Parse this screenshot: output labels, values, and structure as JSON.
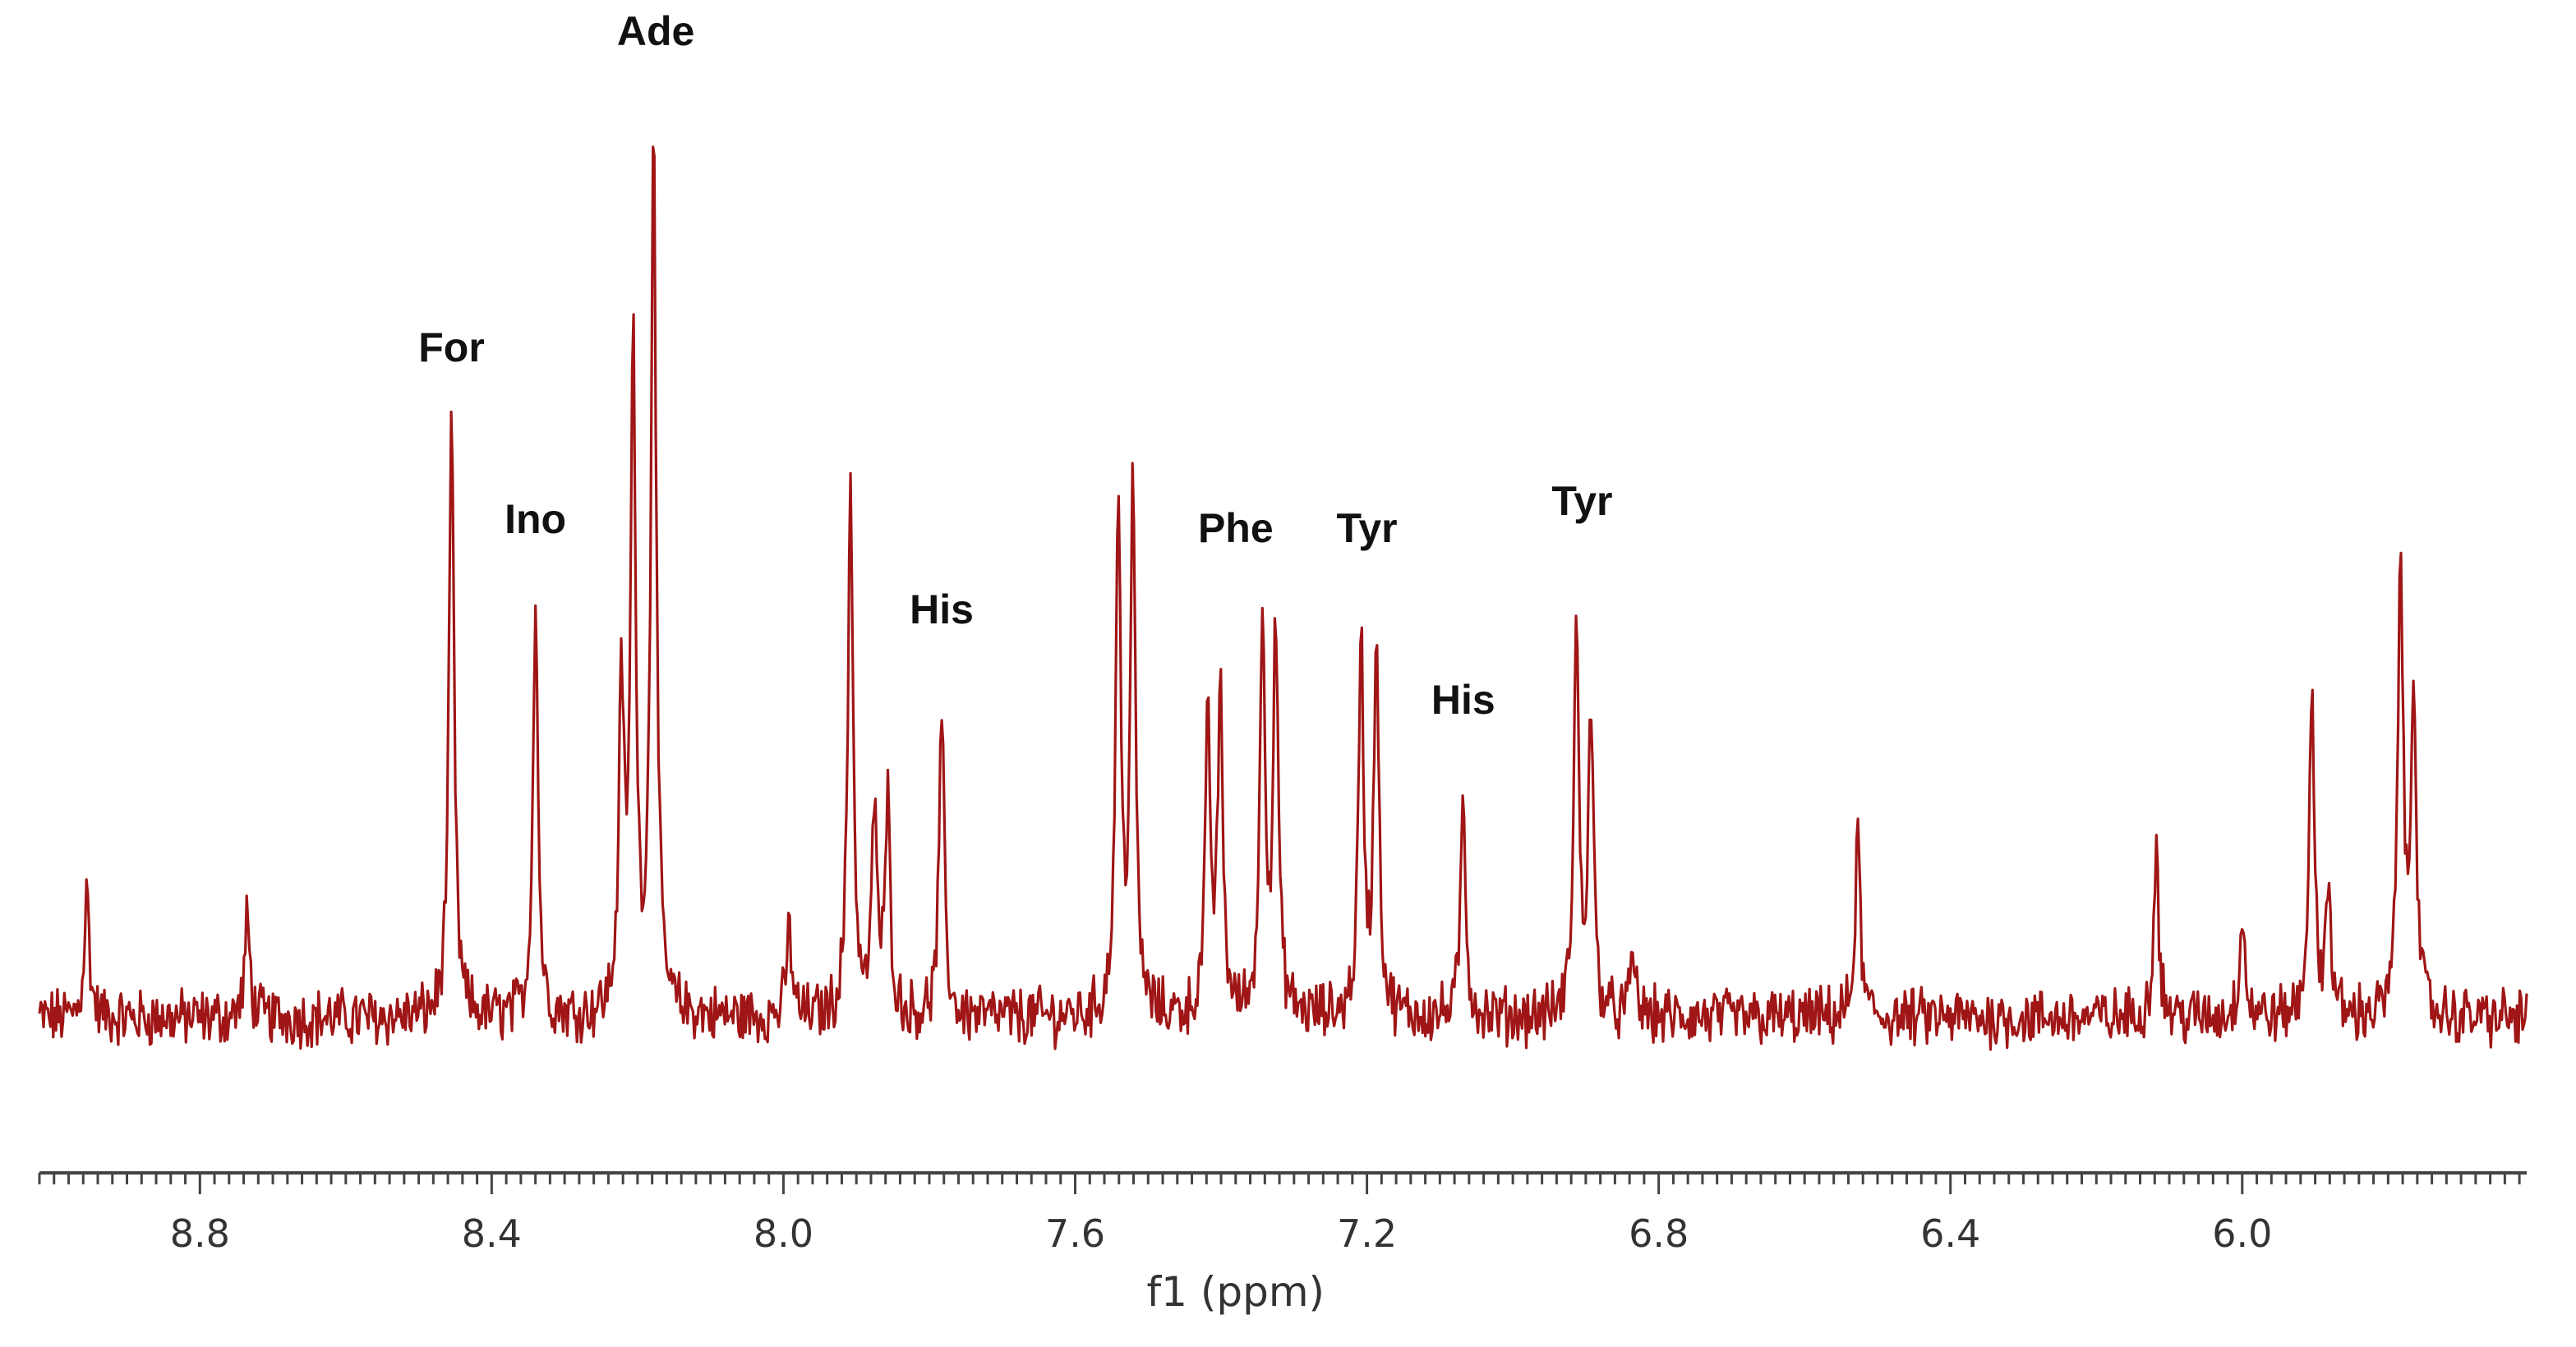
{
  "chart_data": {
    "type": "line",
    "title": "",
    "xlabel": "f1 (ppm)",
    "ylabel": "",
    "x_reversed": true,
    "xlim": [
      9.02,
      5.61
    ],
    "ylim": [
      -0.12,
      1.05
    ],
    "grid": false,
    "line_color": "#a01515",
    "x_ticks": [
      8.8,
      8.4,
      8.0,
      7.6,
      7.2,
      6.8,
      6.4,
      6.0
    ],
    "x_tick_labels": [
      "8.8",
      "8.4",
      "8.0",
      "7.6",
      "7.2",
      "6.8",
      "6.4",
      "6.0"
    ],
    "peaks": [
      {
        "x": 8.955,
        "y": 0.14
      },
      {
        "x": 8.735,
        "y": 0.11
      },
      {
        "x": 8.455,
        "y": 0.66
      },
      {
        "x": 8.34,
        "y": 0.46
      },
      {
        "x": 8.222,
        "y": 0.35
      },
      {
        "x": 8.206,
        "y": 0.73
      },
      {
        "x": 8.178,
        "y": 1.0
      },
      {
        "x": 7.992,
        "y": 0.1
      },
      {
        "x": 7.908,
        "y": 0.6
      },
      {
        "x": 7.875,
        "y": 0.23
      },
      {
        "x": 7.857,
        "y": 0.23
      },
      {
        "x": 7.783,
        "y": 0.33
      },
      {
        "x": 7.541,
        "y": 0.56
      },
      {
        "x": 7.521,
        "y": 0.58
      },
      {
        "x": 7.418,
        "y": 0.32
      },
      {
        "x": 7.401,
        "y": 0.35
      },
      {
        "x": 7.343,
        "y": 0.45
      },
      {
        "x": 7.325,
        "y": 0.42
      },
      {
        "x": 7.208,
        "y": 0.41
      },
      {
        "x": 7.187,
        "y": 0.42
      },
      {
        "x": 7.068,
        "y": 0.24
      },
      {
        "x": 6.913,
        "y": 0.43
      },
      {
        "x": 6.893,
        "y": 0.34
      },
      {
        "x": 6.835,
        "y": 0.07
      },
      {
        "x": 6.527,
        "y": 0.2
      },
      {
        "x": 6.118,
        "y": 0.19
      },
      {
        "x": 6.0,
        "y": 0.12
      },
      {
        "x": 5.905,
        "y": 0.36
      },
      {
        "x": 5.882,
        "y": 0.15
      },
      {
        "x": 5.783,
        "y": 0.51
      },
      {
        "x": 5.765,
        "y": 0.38
      }
    ],
    "annotations": [
      {
        "text": "Ade",
        "x": 8.175,
        "y": 1.07
      },
      {
        "text": "For",
        "x": 8.455,
        "y": 0.72
      },
      {
        "text": "Ino",
        "x": 8.34,
        "y": 0.53
      },
      {
        "text": "His",
        "x": 7.783,
        "y": 0.43
      },
      {
        "text": "Phe",
        "x": 7.38,
        "y": 0.52
      },
      {
        "text": "Tyr",
        "x": 7.2,
        "y": 0.52
      },
      {
        "text": "His",
        "x": 7.068,
        "y": 0.33
      },
      {
        "text": "Tyr",
        "x": 6.905,
        "y": 0.55
      }
    ]
  }
}
